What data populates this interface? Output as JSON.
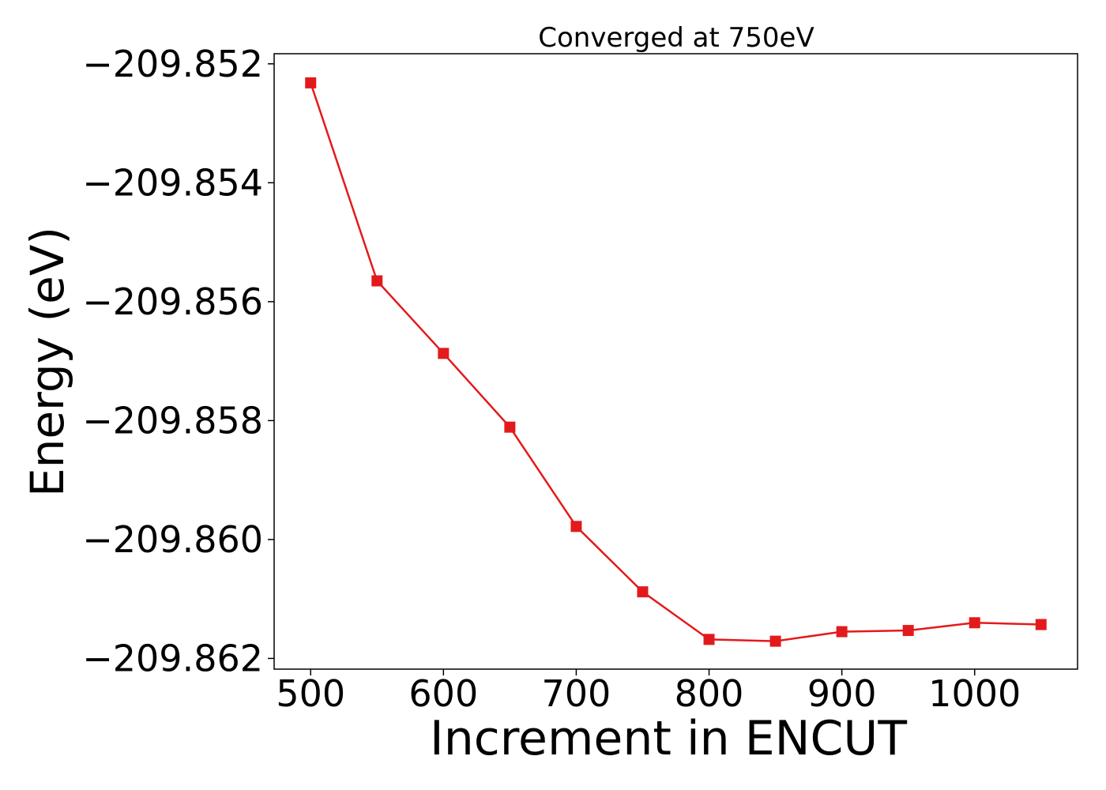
{
  "chart_data": {
    "type": "line",
    "title": "Converged at 750eV",
    "xlabel": "Increment in ENCUT",
    "ylabel": "Energy (eV)",
    "x": [
      500,
      550,
      600,
      650,
      700,
      750,
      800,
      850,
      900,
      950,
      1000,
      1050
    ],
    "series": [
      {
        "values": [
          -209.85232,
          -209.85565,
          -209.85687,
          -209.85811,
          -209.85978,
          -209.86088,
          -209.86168,
          -209.86171,
          -209.86155,
          -209.86153,
          -209.8614,
          -209.86143
        ],
        "color": "#e31a1c",
        "marker": "square"
      }
    ],
    "xlim": [
      472.5,
      1077.5
    ],
    "ylim": [
      -209.86218,
      -209.85183
    ],
    "x_ticks": [
      {
        "value": 500,
        "label": "500"
      },
      {
        "value": 600,
        "label": "600"
      },
      {
        "value": 700,
        "label": "700"
      },
      {
        "value": 800,
        "label": "800"
      },
      {
        "value": 900,
        "label": "900"
      },
      {
        "value": 1000,
        "label": "1000"
      }
    ],
    "y_ticks": [
      {
        "value": -209.852,
        "label": "−209.852"
      },
      {
        "value": -209.854,
        "label": "−209.854"
      },
      {
        "value": -209.856,
        "label": "−209.856"
      },
      {
        "value": -209.858,
        "label": "−209.858"
      },
      {
        "value": -209.86,
        "label": "−209.860"
      },
      {
        "value": -209.862,
        "label": "−209.862"
      }
    ],
    "grid": false,
    "legend": "none"
  }
}
